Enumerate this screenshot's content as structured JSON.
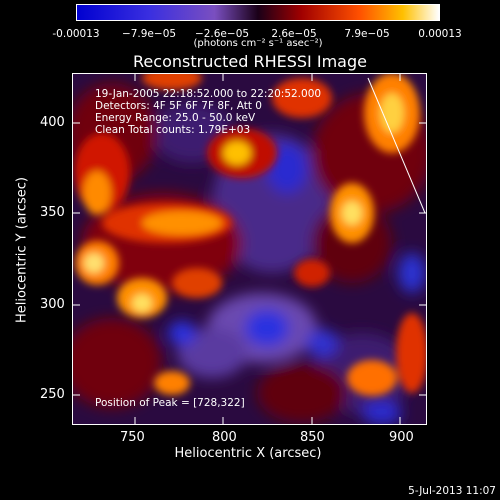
{
  "colorbar": {
    "ticks": [
      "-0.00013",
      "−7.9e−05",
      "−2.6e−05",
      "2.6e−05",
      "7.9e−05",
      "0.00013"
    ],
    "units": "(photons cm⁻² s⁻¹ asec⁻²)"
  },
  "title": "Reconstructed RHESSI Image",
  "info": {
    "line1": "19-Jan-2005 22:18:52.000 to 22:20:52.000",
    "line2": "Detectors: 4F 5F 6F 7F 8F, Att 0",
    "line3": "Energy Range: 25.0 - 50.0 keV",
    "line4": "Clean     Total counts: 1.79E+03"
  },
  "peak": "Position of Peak = [728,322]",
  "axes": {
    "xlabel": "Heliocentric X (arcsec)",
    "ylabel": "Heliocentric Y (arcsec)",
    "xticks": [
      "750",
      "800",
      "850",
      "900"
    ],
    "yticks": [
      "400",
      "350",
      "300",
      "250"
    ]
  },
  "footer": "5-Jul-2013 11:07"
}
